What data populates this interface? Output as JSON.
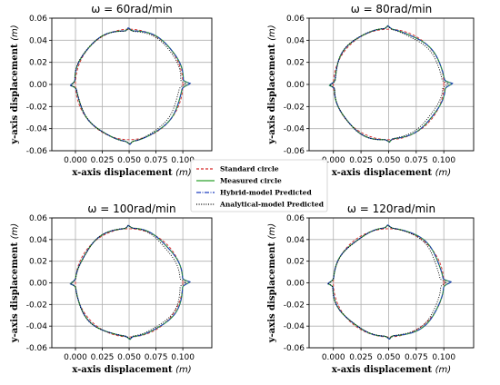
{
  "legend": {
    "placement": "center",
    "entries": [
      {
        "label": "Standard circle",
        "color": "#d62728",
        "dash": "dashed"
      },
      {
        "label": "Measured circle",
        "color": "#2ca02c",
        "dash": "solid"
      },
      {
        "label": "Hybrid-model Predicted",
        "color": "#1f3fbf",
        "dash": "dashdot"
      },
      {
        "label": "Analytical-model Predicted",
        "color": "#000000",
        "dash": "dotted"
      }
    ]
  },
  "chart_data": [
    {
      "type": "line",
      "title": "ω = 60rad/min",
      "xlabel": "x-axis displacement",
      "xunit": "(m)",
      "ylabel": "y-axis displacement",
      "yunit": "(m)",
      "xlim": [
        -0.022,
        0.127
      ],
      "ylim": [
        -0.06,
        0.06
      ],
      "xticks": [
        "0.000",
        "0.025",
        "0.050",
        "0.075",
        "0.100"
      ],
      "xtick_values": [
        0,
        0.025,
        0.05,
        0.075,
        0.1
      ],
      "yticks": [
        "0.06",
        "0.04",
        "0.02",
        "0.00",
        "-0.02",
        "-0.04",
        "-0.06"
      ],
      "ytick_values": [
        0.06,
        0.04,
        0.02,
        0,
        -0.02,
        -0.04,
        -0.06
      ],
      "grid": true,
      "circle": {
        "center_x": 0.05,
        "center_y": 0,
        "radius": 0.05
      },
      "series": [
        {
          "name": "Standard circle",
          "model": "standard"
        },
        {
          "name": "Measured circle",
          "model": "measured"
        },
        {
          "name": "Hybrid-model Predicted",
          "model": "hybrid"
        },
        {
          "name": "Analytical-model Predicted",
          "model": "analytical"
        }
      ]
    },
    {
      "type": "line",
      "title": "ω = 80rad/min",
      "xlabel": "x-axis displacement",
      "xunit": "(m)",
      "ylabel": "y-axis displacement",
      "yunit": "(m)",
      "xlim": [
        -0.022,
        0.127
      ],
      "ylim": [
        -0.06,
        0.06
      ],
      "xticks": [
        "0.000",
        "0.025",
        "0.050",
        "0.075",
        "0.100"
      ],
      "xtick_values": [
        0,
        0.025,
        0.05,
        0.075,
        0.1
      ],
      "yticks": [
        "0.06",
        "0.04",
        "0.02",
        "0.00",
        "-0.02",
        "-0.04",
        "-0.06"
      ],
      "ytick_values": [
        0.06,
        0.04,
        0.02,
        0,
        -0.02,
        -0.04,
        -0.06
      ],
      "grid": true,
      "circle": {
        "center_x": 0.05,
        "center_y": 0,
        "radius": 0.05
      },
      "series": [
        {
          "name": "Standard circle",
          "model": "standard"
        },
        {
          "name": "Measured circle",
          "model": "measured"
        },
        {
          "name": "Hybrid-model Predicted",
          "model": "hybrid"
        },
        {
          "name": "Analytical-model Predicted",
          "model": "analytical"
        }
      ]
    },
    {
      "type": "line",
      "title": "ω = 100rad/min",
      "xlabel": "x-axis displacement",
      "xunit": "(m)",
      "ylabel": "y-axis displacement",
      "yunit": "(m)",
      "xlim": [
        -0.022,
        0.127
      ],
      "ylim": [
        -0.06,
        0.06
      ],
      "xticks": [
        "0.000",
        "0.025",
        "0.050",
        "0.075",
        "0.100"
      ],
      "xtick_values": [
        0,
        0.025,
        0.05,
        0.075,
        0.1
      ],
      "yticks": [
        "0.06",
        "0.04",
        "0.02",
        "0.00",
        "-0.02",
        "-0.04",
        "-0.06"
      ],
      "ytick_values": [
        0.06,
        0.04,
        0.02,
        0,
        -0.02,
        -0.04,
        -0.06
      ],
      "grid": true,
      "circle": {
        "center_x": 0.05,
        "center_y": 0,
        "radius": 0.05
      },
      "series": [
        {
          "name": "Standard circle",
          "model": "standard"
        },
        {
          "name": "Measured circle",
          "model": "measured"
        },
        {
          "name": "Hybrid-model Predicted",
          "model": "hybrid"
        },
        {
          "name": "Analytical-model Predicted",
          "model": "analytical"
        }
      ]
    },
    {
      "type": "line",
      "title": "ω = 120rad/min",
      "xlabel": "x-axis displacement",
      "xunit": "(m)",
      "ylabel": "y-axis displacement",
      "yunit": "(m)",
      "xlim": [
        -0.022,
        0.127
      ],
      "ylim": [
        -0.06,
        0.06
      ],
      "xticks": [
        "0.000",
        "0.025",
        "0.050",
        "0.075",
        "0.100"
      ],
      "xtick_values": [
        0,
        0.025,
        0.05,
        0.075,
        0.1
      ],
      "yticks": [
        "0.06",
        "0.04",
        "0.02",
        "0.00",
        "-0.02",
        "-0.04",
        "-0.06"
      ],
      "ytick_values": [
        0.06,
        0.04,
        0.02,
        0,
        -0.02,
        -0.04,
        -0.06
      ],
      "grid": true,
      "circle": {
        "center_x": 0.05,
        "center_y": 0,
        "radius": 0.05
      },
      "series": [
        {
          "name": "Standard circle",
          "model": "standard"
        },
        {
          "name": "Measured circle",
          "model": "measured"
        },
        {
          "name": "Hybrid-model Predicted",
          "model": "hybrid"
        },
        {
          "name": "Analytical-model Predicted",
          "model": "analytical"
        }
      ]
    }
  ]
}
